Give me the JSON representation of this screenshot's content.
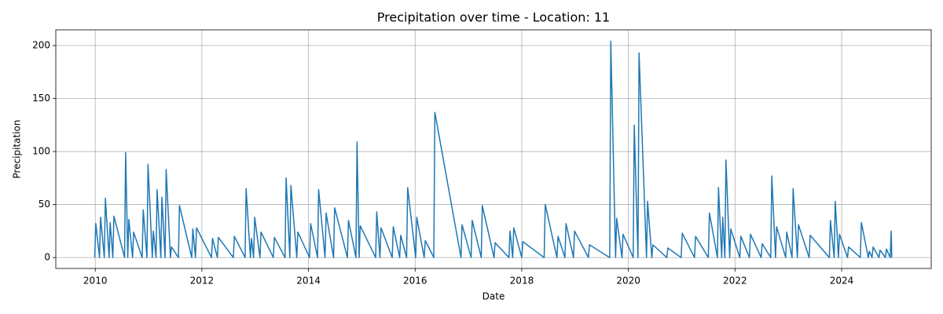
{
  "chart_data": {
    "type": "line",
    "title": "Precipitation over time - Location: 11",
    "x_label": "Date",
    "y_label": "Precipitation",
    "color": "#1f77b4",
    "grid": true,
    "xlim": [
      2009.26,
      2025.68
    ],
    "ylim": [
      -10.3,
      214.8
    ],
    "xticks": [
      2010,
      2012,
      2014,
      2016,
      2018,
      2020,
      2022,
      2024
    ],
    "yticks": [
      0,
      50,
      100,
      150,
      200
    ],
    "x": [
      2009.99,
      2010.01,
      2010.08,
      2010.1,
      2010.17,
      2010.19,
      2010.26,
      2010.28,
      2010.33,
      2010.35,
      2010.55,
      2010.57,
      2010.61,
      2010.63,
      2010.7,
      2010.72,
      2010.88,
      2010.9,
      2010.97,
      2010.99,
      2011.07,
      2011.09,
      2011.14,
      2011.16,
      2011.23,
      2011.25,
      2011.31,
      2011.33,
      2011.41,
      2011.43,
      2011.56,
      2011.58,
      2011.81,
      2011.83,
      2011.88,
      2011.9,
      2012.18,
      2012.2,
      2012.29,
      2012.31,
      2012.59,
      2012.61,
      2012.81,
      2012.83,
      2012.91,
      2012.93,
      2012.97,
      2012.99,
      2013.09,
      2013.11,
      2013.34,
      2013.36,
      2013.56,
      2013.58,
      2013.65,
      2013.67,
      2013.78,
      2013.8,
      2014.02,
      2014.04,
      2014.17,
      2014.19,
      2014.31,
      2014.33,
      2014.47,
      2014.49,
      2014.73,
      2014.75,
      2014.89,
      2014.91,
      2014.95,
      2014.97,
      2015.26,
      2015.28,
      2015.34,
      2015.36,
      2015.57,
      2015.59,
      2015.71,
      2015.73,
      2015.84,
      2015.86,
      2016.01,
      2016.03,
      2016.17,
      2016.19,
      2016.35,
      2016.37,
      2016.86,
      2016.88,
      2017.05,
      2017.07,
      2017.24,
      2017.26,
      2017.48,
      2017.5,
      2017.76,
      2017.78,
      2017.83,
      2017.85,
      2018.0,
      2018.02,
      2018.42,
      2018.44,
      2018.66,
      2018.68,
      2018.81,
      2018.83,
      2018.97,
      2018.99,
      2019.25,
      2019.27,
      2019.65,
      2019.67,
      2019.76,
      2019.78,
      2019.88,
      2019.9,
      2020.09,
      2020.11,
      2020.18,
      2020.2,
      2020.34,
      2020.36,
      2020.44,
      2020.46,
      2020.72,
      2020.74,
      2020.99,
      2021.01,
      2021.24,
      2021.26,
      2021.5,
      2021.52,
      2021.67,
      2021.69,
      2021.75,
      2021.77,
      2021.81,
      2021.83,
      2021.9,
      2021.92,
      2022.09,
      2022.11,
      2022.27,
      2022.29,
      2022.49,
      2022.51,
      2022.67,
      2022.69,
      2022.76,
      2022.78,
      2022.95,
      2022.97,
      2023.07,
      2023.09,
      2023.17,
      2023.19,
      2023.39,
      2023.41,
      2023.77,
      2023.79,
      2023.86,
      2023.88,
      2023.94,
      2023.96,
      2024.11,
      2024.13,
      2024.35,
      2024.37,
      2024.5,
      2024.52,
      2024.57,
      2024.59,
      2024.7,
      2024.72,
      2024.82,
      2024.84,
      2024.91,
      2024.93,
      2024.94
    ],
    "values": [
      0,
      32,
      0,
      38,
      0,
      56,
      0,
      33,
      0,
      39,
      0,
      99,
      0,
      36,
      0,
      24,
      0,
      45,
      0,
      88,
      0,
      25,
      0,
      64,
      0,
      57,
      0,
      83,
      0,
      10,
      0,
      49,
      0,
      27,
      0,
      28,
      0,
      18,
      0,
      19,
      0,
      20,
      0,
      65,
      0,
      18,
      0,
      38,
      0,
      24,
      0,
      19,
      0,
      75,
      0,
      68,
      0,
      24,
      0,
      32,
      0,
      64,
      0,
      42,
      0,
      47,
      0,
      35,
      0,
      109,
      0,
      30,
      0,
      43,
      0,
      28,
      0,
      29,
      0,
      21,
      0,
      66,
      0,
      38,
      0,
      16,
      0,
      137,
      0,
      31,
      0,
      35,
      0,
      49,
      0,
      14,
      0,
      25,
      0,
      28,
      0,
      15,
      0,
      50,
      0,
      20,
      0,
      32,
      0,
      25,
      0,
      12,
      0,
      204,
      0,
      37,
      0,
      22,
      0,
      125,
      0,
      193,
      0,
      53,
      0,
      12,
      0,
      9,
      0,
      23,
      0,
      20,
      0,
      42,
      0,
      66,
      0,
      38,
      0,
      92,
      0,
      27,
      0,
      20,
      0,
      22,
      0,
      13,
      0,
      77,
      0,
      29,
      0,
      24,
      0,
      65,
      0,
      31,
      0,
      21,
      0,
      35,
      0,
      53,
      0,
      22,
      0,
      10,
      0,
      33,
      0,
      6,
      0,
      10,
      0,
      7,
      0,
      8,
      0,
      25,
      0
    ]
  }
}
